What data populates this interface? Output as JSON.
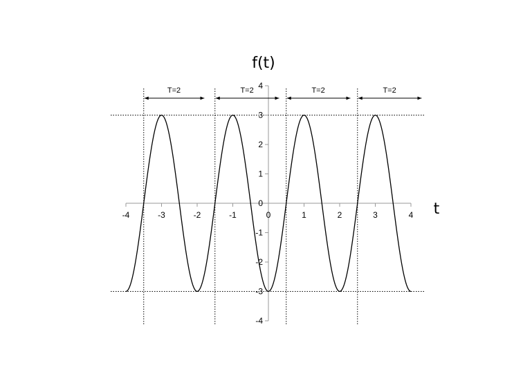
{
  "chart_data": {
    "type": "line",
    "title": "",
    "function": "f(t) = -3 cos(pi t)",
    "xlabel": "t",
    "ylabel": "f(t)",
    "xlim": [
      -4,
      4
    ],
    "ylim": [
      -4,
      4
    ],
    "x_ticks": [
      "-4",
      "-3",
      "-2",
      "-1",
      "0",
      "1",
      "2",
      "3",
      "4"
    ],
    "y_ticks": [
      "4",
      "3",
      "2",
      "1",
      "0",
      "-1",
      "-2",
      "-3",
      "-4"
    ],
    "series": [
      {
        "x": [
          -4,
          -3.5,
          -3,
          -2.5,
          -2,
          -1.5,
          -1,
          -0.5,
          0,
          0.5,
          1,
          1.5,
          2,
          2.5,
          3,
          3.5,
          4
        ],
        "values": [
          -3,
          0,
          3,
          0,
          -3,
          0,
          3,
          0,
          -3,
          0,
          3,
          0,
          -3,
          0,
          3,
          0,
          -3
        ]
      }
    ],
    "reference_lines": {
      "horizontal_y": [
        3,
        -3
      ],
      "vertical_x": [
        -3.5,
        -1.5,
        0.5,
        2.5
      ]
    },
    "period_annotations": [
      {
        "label": "T=2",
        "from": -3.5,
        "to": -1.8
      },
      {
        "label": "T=2",
        "from": -1.5,
        "to": 0.3
      },
      {
        "label": "T=2",
        "from": 0.5,
        "to": 2.3
      },
      {
        "label": "T=2",
        "from": 2.5,
        "to": 4.3
      }
    ],
    "grid": false,
    "legend": "none"
  }
}
